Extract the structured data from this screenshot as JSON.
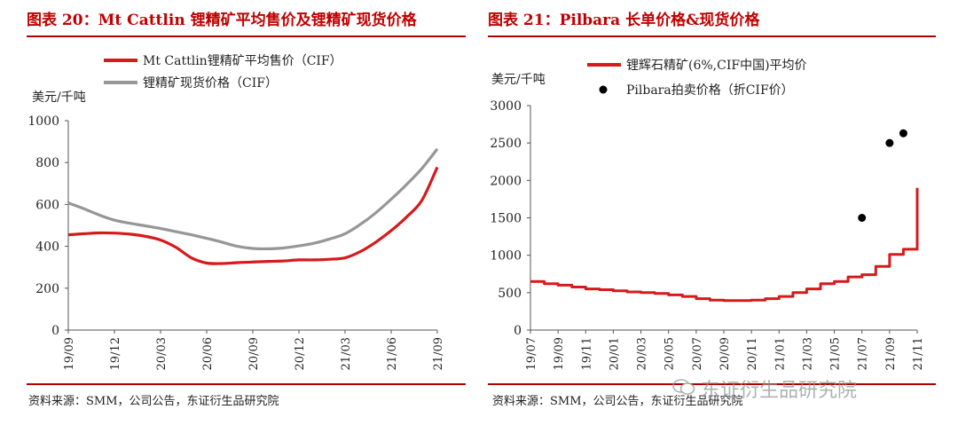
{
  "chart_data": [
    {
      "type": "line",
      "title": "图表 20：Mt Cattlin 锂精矿平均售价及锂精矿现货价格",
      "ylabel": "美元/千吨",
      "ylim": [
        0,
        1000
      ],
      "yticks": [
        "0",
        "200",
        "400",
        "600",
        "800",
        "1000"
      ],
      "x": [
        "19/09",
        "19/10",
        "19/11",
        "19/12",
        "20/01",
        "20/02",
        "20/03",
        "20/04",
        "20/05",
        "20/06",
        "20/07",
        "20/08",
        "20/09",
        "20/10",
        "20/11",
        "20/12",
        "21/01",
        "21/02",
        "21/03",
        "21/04",
        "21/05",
        "21/06",
        "21/07",
        "21/08",
        "21/09"
      ],
      "xticks": [
        "19/09",
        "19/12",
        "20/03",
        "20/06",
        "20/09",
        "20/12",
        "21/03",
        "21/06",
        "21/09"
      ],
      "series": [
        {
          "name": "Mt Cattlin锂精矿平均售价（CIF）",
          "color": "#d7191c",
          "values": [
            455,
            460,
            464,
            463,
            458,
            448,
            430,
            395,
            345,
            320,
            318,
            322,
            325,
            328,
            330,
            335,
            335,
            338,
            345,
            375,
            420,
            475,
            540,
            620,
            778
          ]
        },
        {
          "name": "锂精矿现货价格（CIF）",
          "color": "#969696",
          "values": [
            607,
            580,
            550,
            525,
            510,
            498,
            485,
            470,
            455,
            438,
            420,
            400,
            390,
            388,
            392,
            402,
            415,
            435,
            460,
            505,
            560,
            625,
            695,
            772,
            865
          ]
        }
      ],
      "legend": "top",
      "grid": false,
      "source": "资料来源：SMM，公司公告，东证衍生品研究院"
    },
    {
      "type": "line",
      "title": "图表 21：Pilbara 长单价格&现货价格",
      "ylabel": "美元/千吨",
      "ylim": [
        0,
        3000
      ],
      "yticks": [
        "0",
        "500",
        "1000",
        "1500",
        "2000",
        "2500",
        "3000"
      ],
      "x": [
        "19/07",
        "19/08",
        "19/09",
        "19/10",
        "19/11",
        "19/12",
        "20/01",
        "20/02",
        "20/03",
        "20/04",
        "20/05",
        "20/06",
        "20/07",
        "20/08",
        "20/09",
        "20/10",
        "20/11",
        "20/12",
        "21/01",
        "21/02",
        "21/03",
        "21/04",
        "21/05",
        "21/06",
        "21/07",
        "21/08",
        "21/09",
        "21/10",
        "21/11"
      ],
      "xticks": [
        "19/07",
        "19/09",
        "19/11",
        "20/01",
        "20/03",
        "20/05",
        "20/07",
        "20/09",
        "20/11",
        "21/01",
        "21/03",
        "21/05",
        "21/07",
        "21/09",
        "21/11"
      ],
      "series": [
        {
          "name": "锂辉石精矿(6%,CIF中国)平均价",
          "color": "#d7191c",
          "style": "line",
          "values": [
            650,
            620,
            600,
            575,
            550,
            540,
            525,
            510,
            500,
            490,
            470,
            450,
            420,
            400,
            395,
            395,
            400,
            420,
            450,
            500,
            550,
            620,
            650,
            710,
            740,
            850,
            1010,
            1080,
            1900
          ]
        },
        {
          "name": "Pilbara拍卖价格（折CIF价）",
          "color": "#000000",
          "style": "scatter",
          "points": [
            {
              "x": "21/07",
              "y": 1500
            },
            {
              "x": "21/09",
              "y": 2500
            },
            {
              "x": "21/10",
              "y": 2630
            }
          ]
        }
      ],
      "legend": "top",
      "grid": false,
      "source": "资料来源：SMM，公司公告，东证衍生品研究院"
    }
  ],
  "watermark": "东证衍生品研究院"
}
